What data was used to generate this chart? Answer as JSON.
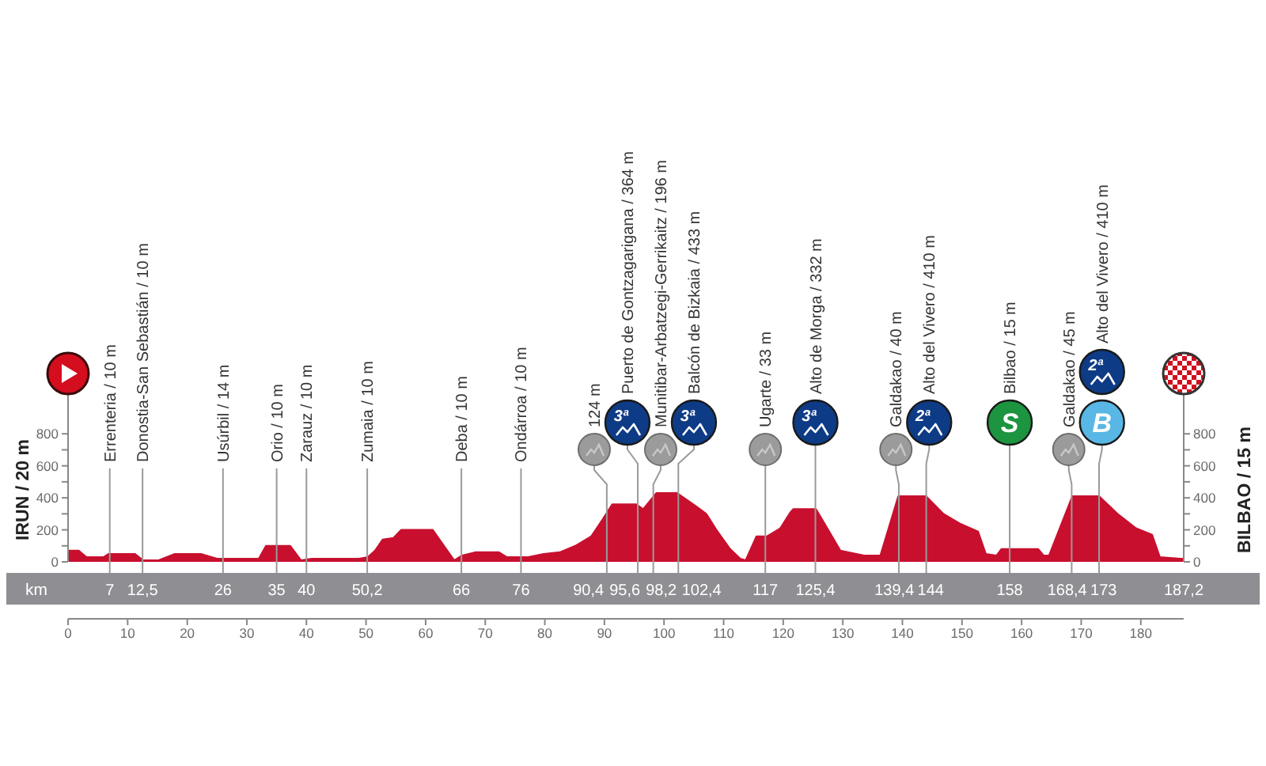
{
  "chart_data": {
    "type": "area",
    "ylabel": "IRUN / 20 m",
    "y2label": "BILBAO / 15 m",
    "x": [
      0,
      1.8,
      3.1,
      6,
      6.8,
      11.2,
      12.6,
      15.2,
      17.9,
      22.3,
      25,
      32,
      33.2,
      37.3,
      39.1,
      40.9,
      48.8,
      50.3,
      51.5,
      52.8,
      54.6,
      55.9,
      61.2,
      64.8,
      66.1,
      68.3,
      72.3,
      73.6,
      77.2,
      79.8,
      82.5,
      85.1,
      87.8,
      89.6,
      91.3,
      95.3,
      96.5,
      98.7,
      102.2,
      105.3,
      107.1,
      108.8,
      111.1,
      112.8,
      113.7,
      115.5,
      117.3,
      119.5,
      121.2,
      121.7,
      125.5,
      127.4,
      129.6,
      131,
      133.6,
      136.3,
      139.3,
      144,
      146.9,
      149.6,
      152.7,
      154,
      155.8,
      156.6,
      162.8,
      163.7,
      164.6,
      168.5,
      173,
      176.1,
      179.2,
      181.9,
      183.2,
      186.7,
      187.2
    ],
    "values": [
      70,
      70,
      30,
      30,
      50,
      50,
      10,
      10,
      50,
      50,
      20,
      20,
      100,
      100,
      10,
      20,
      20,
      30,
      70,
      140,
      150,
      200,
      200,
      10,
      40,
      60,
      60,
      30,
      30,
      50,
      60,
      100,
      160,
      260,
      360,
      360,
      330,
      430,
      430,
      350,
      300,
      200,
      80,
      20,
      10,
      160,
      160,
      210,
      310,
      330,
      330,
      210,
      70,
      60,
      40,
      40,
      410,
      410,
      300,
      240,
      190,
      50,
      40,
      80,
      80,
      40,
      40,
      410,
      410,
      300,
      210,
      170,
      30,
      20,
      20
    ],
    "color": "#c8102e",
    "xlim": [
      0,
      187.2
    ],
    "xticks": [
      0,
      10,
      20,
      30,
      40,
      50,
      60,
      70,
      80,
      90,
      100,
      110,
      120,
      130,
      140,
      150,
      160,
      170,
      180
    ],
    "ylim": [
      0,
      900
    ],
    "yticks": [
      0,
      {
        "value": 100,
        "label": null
      },
      200,
      {
        "value": 300,
        "label": null
      },
      400,
      {
        "value": 500,
        "label": null
      },
      600,
      {
        "value": 700,
        "label": null
      },
      800
    ],
    "y2lim": [
      0,
      900
    ],
    "y2ticks": [
      0,
      {
        "value": 100,
        "label": null
      },
      200,
      {
        "value": 300,
        "label": null
      },
      400,
      {
        "value": 500,
        "label": null
      },
      600,
      {
        "value": 700,
        "label": null
      },
      800
    ],
    "ref_lines": [
      {
        "axis": "x",
        "value": 7,
        "label": "7"
      },
      {
        "axis": "x",
        "value": 12.5,
        "label": "12,5"
      },
      {
        "axis": "x",
        "value": 26,
        "label": "26"
      },
      {
        "axis": "x",
        "value": 35,
        "label": "35"
      },
      {
        "axis": "x",
        "value": 40,
        "label": "40"
      },
      {
        "axis": "x",
        "value": 50.2,
        "label": "50,2"
      },
      {
        "axis": "x",
        "value": 66,
        "label": "66"
      },
      {
        "axis": "x",
        "value": 76,
        "label": "76"
      },
      {
        "axis": "x",
        "value": 90.4,
        "label": "90,4"
      },
      {
        "axis": "x",
        "value": 95.6,
        "label": "95,6"
      },
      {
        "axis": "x",
        "value": 98.2,
        "label": "98,2"
      },
      {
        "axis": "x",
        "value": 102.4,
        "label": "102,4"
      },
      {
        "axis": "x",
        "value": 117,
        "label": "117"
      },
      {
        "axis": "x",
        "value": 125.4,
        "label": "125,4"
      },
      {
        "axis": "x",
        "value": 139.4,
        "label": "139,4"
      },
      {
        "axis": "x",
        "value": 144,
        "label": "144"
      },
      {
        "axis": "x",
        "value": 158,
        "label": "158"
      },
      {
        "axis": "x",
        "value": 168.4,
        "label": "168,4"
      },
      {
        "axis": "x",
        "value": 173,
        "label": "173"
      }
    ],
    "annotations": [
      "Errenteria / 10 m",
      "Donostia-San Sebastián / 10 m",
      "Usúrbil / 14 m",
      "Orio / 10 m",
      "Zarauz / 10 m",
      "Zumaia / 10 m",
      "Deba / 10 m",
      "Ondárroa / 10 m",
      "124 m",
      "Puerto de Gontzagarigana / 364 m",
      "Munitibar-Arbatzegi-Gerrikaitz / 196 m",
      "Balcón de Bizkaia / 433 m",
      "Ugarte / 33 m",
      "Alto de Morga / 332 m",
      "Galdakao / 40 m",
      "Alto del Vivero / 410 m",
      "Bilbao / 15 m",
      "Galdakao / 45 m",
      "Alto del Vivero / 410 m",
      "3ª",
      "3ª",
      "3ª",
      "2ª",
      "S",
      "2ª",
      "B",
      "km",
      "187,2"
    ]
  }
}
